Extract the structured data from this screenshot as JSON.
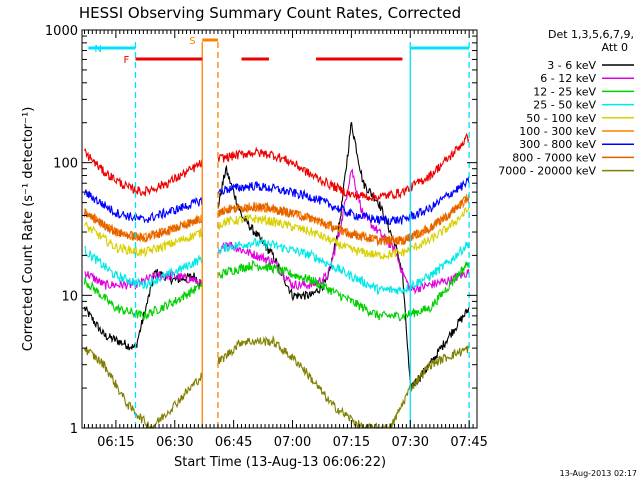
{
  "chart_data": {
    "type": "line",
    "title": "HESSI Observing Summary Count Rates, Corrected",
    "xlabel": "Start Time (13-Aug-13 06:06:22)",
    "ylabel": "Corrected Count Rate (s⁻¹ detector⁻¹)",
    "y_scale": "log",
    "ylim": [
      1,
      1000
    ],
    "xlim": [
      "06:06:22",
      "07:47:00"
    ],
    "x_ticks": [
      "06:15",
      "06:30",
      "06:45",
      "07:00",
      "07:15",
      "07:30",
      "07:45"
    ],
    "y_ticks": [
      "1",
      "10",
      "100",
      "1000"
    ],
    "timestamp": "13-Aug-2013 02:17",
    "legend": {
      "position": "right",
      "header": [
        "Det 1,3,5,6,7,9,",
        "Att 0"
      ],
      "entries": [
        {
          "label": "3 - 6 keV",
          "color": "#000000"
        },
        {
          "label": "6 - 12 keV",
          "color": "#e000e0"
        },
        {
          "label": "12 - 25 keV",
          "color": "#00d000"
        },
        {
          "label": "25 - 50 keV",
          "color": "#00e8e8"
        },
        {
          "label": "50 - 100 keV",
          "color": "#d8d000"
        },
        {
          "label": "100 - 300 keV",
          "color": "#ff8000"
        },
        {
          "label": "300 - 800 keV",
          "color": "#0000ff"
        },
        {
          "label": "800 - 7000 keV",
          "color": "#e06000"
        },
        {
          "label": "7000 - 20000 keV",
          "color": "#808000"
        }
      ]
    },
    "flags": [
      {
        "label": "N",
        "color": "#00e0ff",
        "spans": [
          [
            "06:08",
            "06:20"
          ],
          [
            "07:30",
            "07:45"
          ]
        ]
      },
      {
        "label": "F",
        "color": "#ee0000",
        "spans": [
          [
            "06:20",
            "06:37"
          ],
          [
            "06:47",
            "06:54"
          ],
          [
            "07:06",
            "07:28"
          ]
        ]
      },
      {
        "label": "S",
        "color": "#ff8000",
        "spans": [
          [
            "06:37",
            "06:41"
          ]
        ]
      }
    ],
    "markers": [
      {
        "name": "night-start",
        "time": "06:20",
        "color": "#00e0ff",
        "style": "dashed"
      },
      {
        "name": "saa-start",
        "time": "06:37",
        "color": "#ff8000",
        "style": "solid"
      },
      {
        "name": "saa-end",
        "time": "06:41",
        "color": "#ff8000",
        "style": "dashed"
      },
      {
        "name": "night-end",
        "time": "07:30",
        "color": "#00e0ff",
        "style": "solid"
      },
      {
        "name": "data-end",
        "time": "07:45",
        "color": "#00e0ff",
        "style": "dashed"
      }
    ],
    "series": [
      {
        "name": "3 - 6 keV",
        "color": "#000000",
        "x": [
          "06:07",
          "06:12",
          "06:20",
          "06:25",
          "06:30",
          "06:35",
          "06:37",
          "06:43",
          "06:47",
          "06:55",
          "07:00",
          "07:05",
          "07:09",
          "07:12",
          "07:15",
          "07:18",
          "07:22",
          "07:26",
          "07:28",
          "07:30",
          "07:35",
          "07:40",
          "07:45"
        ],
        "y": [
          8,
          5,
          4,
          15,
          13,
          14,
          12,
          90,
          40,
          20,
          10,
          10,
          13,
          35,
          200,
          70,
          50,
          25,
          15,
          2,
          3,
          5,
          8
        ]
      },
      {
        "name": "6 - 12 keV",
        "color": "#e000e0",
        "x": [
          "06:07",
          "06:12",
          "06:20",
          "06:25",
          "06:30",
          "06:35",
          "06:37",
          "06:43",
          "06:47",
          "06:55",
          "07:00",
          "07:05",
          "07:09",
          "07:12",
          "07:15",
          "07:18",
          "07:22",
          "07:26",
          "07:28",
          "07:30",
          "07:35",
          "07:40",
          "07:45"
        ],
        "y": [
          15,
          12,
          12,
          14,
          14,
          13,
          12,
          25,
          22,
          18,
          12,
          12,
          14,
          30,
          90,
          40,
          30,
          22,
          15,
          11,
          12,
          13,
          15
        ]
      },
      {
        "name": "12 - 25 keV",
        "color": "#00d000",
        "x": [
          "06:07",
          "06:15",
          "06:22",
          "06:30",
          "06:37",
          "06:43",
          "06:50",
          "06:55",
          "07:05",
          "07:15",
          "07:22",
          "07:28",
          "07:35",
          "07:40",
          "07:45"
        ],
        "y": [
          13,
          8,
          7,
          9,
          12,
          15,
          17,
          16,
          13,
          9,
          7,
          7,
          8,
          12,
          18
        ]
      },
      {
        "name": "25 - 50 keV",
        "color": "#00e8e8",
        "x": [
          "06:07",
          "06:15",
          "06:22",
          "06:30",
          "06:37",
          "06:43",
          "06:50",
          "06:55",
          "07:05",
          "07:15",
          "07:22",
          "07:28",
          "07:35",
          "07:40",
          "07:45"
        ],
        "y": [
          22,
          14,
          12,
          15,
          19,
          23,
          25,
          24,
          20,
          14,
          11,
          11,
          14,
          18,
          25
        ]
      },
      {
        "name": "50 - 100 keV",
        "color": "#d8d000",
        "x": [
          "06:07",
          "06:15",
          "06:22",
          "06:30",
          "06:37",
          "06:43",
          "06:50",
          "06:55",
          "07:05",
          "07:15",
          "07:22",
          "07:28",
          "07:35",
          "07:40",
          "07:45"
        ],
        "y": [
          34,
          23,
          21,
          25,
          30,
          36,
          38,
          36,
          30,
          22,
          20,
          21,
          26,
          33,
          45
        ]
      },
      {
        "name": "100 - 300 keV",
        "color": "#ff8000",
        "x": [
          "06:07",
          "06:15",
          "06:22",
          "06:30",
          "06:37",
          "06:43",
          "06:50",
          "06:55",
          "07:05",
          "07:15",
          "07:22",
          "07:28",
          "07:35",
          "07:40",
          "07:45"
        ],
        "y": [
          42,
          30,
          27,
          32,
          38,
          44,
          47,
          45,
          38,
          29,
          26,
          26,
          32,
          41,
          55
        ]
      },
      {
        "name": "300 - 800 keV",
        "color": "#0000ff",
        "x": [
          "06:07",
          "06:15",
          "06:22",
          "06:30",
          "06:37",
          "06:43",
          "06:50",
          "06:55",
          "07:05",
          "07:15",
          "07:22",
          "07:28",
          "07:35",
          "07:40",
          "07:45"
        ],
        "y": [
          60,
          42,
          37,
          44,
          52,
          63,
          67,
          64,
          55,
          41,
          37,
          37,
          45,
          58,
          72
        ]
      },
      {
        "name": "800 - 7000 keV",
        "color": "#e06000",
        "x": [
          "06:07",
          "06:15",
          "06:22",
          "06:30",
          "06:37",
          "06:43",
          "06:50",
          "06:55",
          "07:05",
          "07:15",
          "07:22",
          "07:28",
          "07:35",
          "07:40",
          "07:45"
        ],
        "y": [
          42,
          30,
          27,
          32,
          38,
          44,
          47,
          45,
          38,
          29,
          26,
          26,
          32,
          41,
          55
        ]
      },
      {
        "name": "7000 - 20000 keV",
        "color": "#808000",
        "x": [
          "06:07",
          "06:12",
          "06:18",
          "06:24",
          "06:30",
          "06:37",
          "06:43",
          "06:47",
          "06:55",
          "07:02",
          "07:10",
          "07:18",
          "07:25",
          "07:30",
          "07:35",
          "07:40",
          "07:45"
        ],
        "y": [
          4,
          3,
          1.5,
          1,
          1.5,
          2.5,
          3.5,
          4.5,
          4.5,
          3,
          1.5,
          1,
          1,
          2,
          3,
          3.5,
          4
        ]
      },
      {
        "name": "",
        "color": "#ee0000",
        "x": [
          "06:07",
          "06:12",
          "06:18",
          "06:22",
          "06:28",
          "06:34",
          "06:37",
          "06:43",
          "06:50",
          "06:55",
          "07:00",
          "07:05",
          "07:15",
          "07:22",
          "07:28",
          "07:35",
          "07:40",
          "07:45"
        ],
        "y": [
          120,
          85,
          65,
          60,
          70,
          88,
          100,
          110,
          120,
          115,
          100,
          80,
          57,
          55,
          60,
          80,
          110,
          160
        ]
      }
    ]
  }
}
